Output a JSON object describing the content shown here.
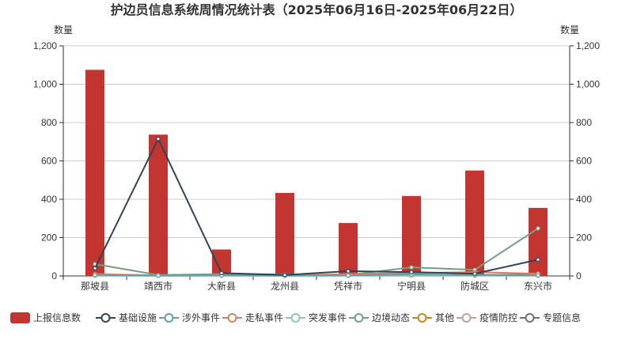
{
  "chart_data": {
    "type": "bar",
    "title": "护边员信息系统周情况统计表（2025年06月16日-2025年06月22日）",
    "ylabel_left": "数量",
    "ylabel_right": "数量",
    "ylim": [
      0,
      1200
    ],
    "yticks": [
      0,
      200,
      400,
      600,
      800,
      1000,
      1200
    ],
    "ytick_labels": [
      "0",
      "200",
      "400",
      "600",
      "800",
      "1,000",
      "1,200"
    ],
    "grid": true,
    "legend_position": "bottom",
    "categories": [
      "那坡县",
      "靖西市",
      "大新县",
      "龙州县",
      "凭祥市",
      "宁明县",
      "防城区",
      "东兴市"
    ],
    "series": [
      {
        "name": "上报信息数",
        "type": "bar",
        "color": "#c23531",
        "values": [
          1075,
          737,
          138,
          433,
          276,
          417,
          550,
          355
        ]
      },
      {
        "name": "基础设施",
        "type": "line",
        "color": "#2f4554",
        "values": [
          40,
          715,
          15,
          5,
          25,
          20,
          12,
          85
        ]
      },
      {
        "name": "涉外事件",
        "type": "line",
        "color": "#61a0a8",
        "values": [
          5,
          2,
          3,
          2,
          3,
          8,
          5,
          3
        ]
      },
      {
        "name": "走私事件",
        "type": "line",
        "color": "#d48265",
        "values": [
          10,
          3,
          5,
          3,
          10,
          15,
          20,
          12
        ]
      },
      {
        "name": "突发事件",
        "type": "line",
        "color": "#91c7ae",
        "values": [
          2,
          1,
          2,
          1,
          2,
          3,
          2,
          2
        ]
      },
      {
        "name": "边境动态",
        "type": "line",
        "color": "#749f83",
        "values": [
          62,
          5,
          10,
          8,
          5,
          45,
          32,
          248
        ]
      },
      {
        "name": "其他",
        "type": "line",
        "color": "#ca8622",
        "values": [
          3,
          2,
          2,
          2,
          2,
          5,
          3,
          5
        ]
      },
      {
        "name": "疫情防控",
        "type": "line",
        "color": "#bda29a",
        "values": [
          1,
          1,
          1,
          1,
          1,
          1,
          1,
          1
        ]
      },
      {
        "name": "专题信息",
        "type": "line",
        "color": "#6e7074",
        "values": [
          5,
          3,
          4,
          3,
          4,
          6,
          5,
          8
        ]
      }
    ]
  }
}
